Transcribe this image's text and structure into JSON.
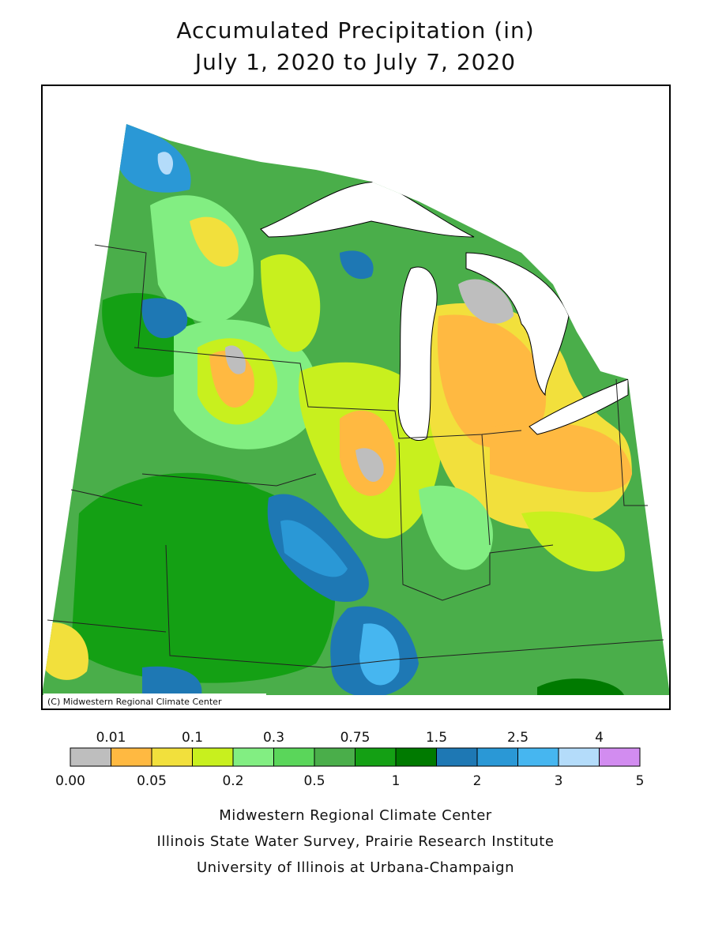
{
  "header": {
    "title": "Accumulated Precipitation (in)",
    "subtitle": "July 1, 2020 to July 7, 2020"
  },
  "map": {
    "credit": "(C) Midwestern Regional Climate Center"
  },
  "legend": {
    "breaks": [
      {
        "value": 0,
        "label": "0.00"
      },
      0.01,
      0.05,
      0.1,
      0.2,
      0.3,
      0.5,
      0.75,
      1,
      1.5,
      2,
      2.5,
      3,
      4,
      5
    ],
    "colors": [
      "#bebebe",
      "#ffb941",
      "#f2e03c",
      "#c8f01e",
      "#82ee82",
      "#5ad65a",
      "#4aae4a",
      "#14a014",
      "#007a00",
      "#1e78b4",
      "#2a98d6",
      "#46b6f0",
      "#b4dcfa",
      "#d28cf0"
    ]
  },
  "footer": {
    "lines": [
      "Midwestern Regional Climate Center",
      "Illinois State Water Survey, Prairie Research Institute",
      "University of Illinois at Urbana-Champaign"
    ]
  }
}
